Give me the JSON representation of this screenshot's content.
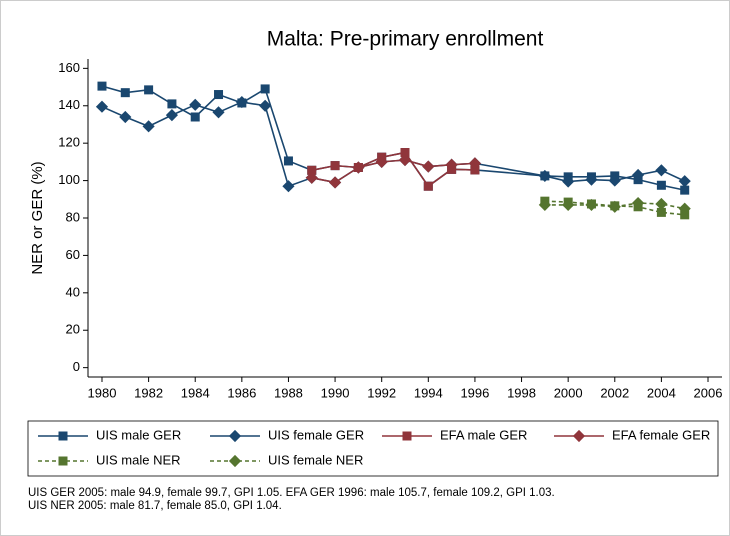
{
  "chart_data": {
    "type": "line",
    "title": "Malta: Pre-primary enrollment",
    "y_label": "NER or GER (%)",
    "xlim": [
      1979.4,
      2006.6
    ],
    "xticks": [
      1980,
      1982,
      1984,
      1986,
      1988,
      1990,
      1992,
      1994,
      1996,
      1998,
      2000,
      2002,
      2004,
      2006
    ],
    "ylim": [
      -5,
      165
    ],
    "yticks": [
      0,
      20,
      40,
      60,
      80,
      100,
      120,
      140,
      160
    ],
    "series": [
      {
        "name": "UIS male GER",
        "color": "#1a476f",
        "marker": "square",
        "dash": false,
        "x": [
          1980,
          1981,
          1982,
          1983,
          1984,
          1985,
          1986,
          1987,
          1988,
          1989,
          1990,
          1991,
          1992,
          1993,
          1994,
          1995,
          1996,
          1999,
          2000,
          2001,
          2002,
          2003,
          2004,
          2005
        ],
        "values": [
          150.5,
          147,
          148.5,
          141,
          134,
          146,
          141.5,
          149,
          110.5,
          105.5,
          108,
          107,
          112.5,
          115,
          97,
          106,
          105.7,
          102.5,
          102,
          102,
          102.5,
          100.5,
          97.5,
          94.9
        ]
      },
      {
        "name": "UIS female GER",
        "color": "#1a476f",
        "marker": "diamond",
        "dash": false,
        "x": [
          1980,
          1981,
          1982,
          1983,
          1984,
          1985,
          1986,
          1987,
          1988,
          1989,
          1990,
          1991,
          1992,
          1993,
          1994,
          1995,
          1996,
          1999,
          2000,
          2001,
          2002,
          2003,
          2004,
          2005
        ],
        "values": [
          139.5,
          134,
          129,
          135,
          140.5,
          136.5,
          142,
          140,
          97,
          101.5,
          99,
          107,
          110,
          111,
          107.5,
          108.5,
          109.2,
          102.5,
          99.5,
          100.5,
          100,
          103,
          105.5,
          99.7
        ]
      },
      {
        "name": "EFA male GER",
        "color": "#90353b",
        "marker": "square",
        "dash": false,
        "x": [
          1989,
          1990,
          1991,
          1992,
          1993,
          1994,
          1995,
          1996
        ],
        "values": [
          105.5,
          108,
          107,
          112.5,
          115,
          97,
          106,
          105.7
        ]
      },
      {
        "name": "EFA female GER",
        "color": "#90353b",
        "marker": "diamond",
        "dash": false,
        "x": [
          1989,
          1990,
          1991,
          1992,
          1993,
          1994,
          1995,
          1996
        ],
        "values": [
          101.5,
          99,
          107,
          110,
          111,
          107.5,
          108.5,
          109.2
        ]
      },
      {
        "name": "UIS male NER",
        "color": "#55752f",
        "marker": "square",
        "dash": true,
        "x": [
          1999,
          2000,
          2001,
          2002,
          2003,
          2004,
          2005
        ],
        "values": [
          89,
          88.5,
          87.5,
          86.5,
          86,
          83,
          81.7
        ]
      },
      {
        "name": "UIS female NER",
        "color": "#55752f",
        "marker": "diamond",
        "dash": true,
        "x": [
          1999,
          2000,
          2001,
          2002,
          2003,
          2004,
          2005
        ],
        "values": [
          87,
          87,
          87,
          86,
          88,
          87.5,
          85.0
        ]
      }
    ],
    "notes": [
      "UIS GER 2005: male 94.9, female 99.7, GPI 1.05. EFA GER 1996: male 105.7, female 109.2, GPI 1.03.",
      "UIS NER 2005: male 81.7, female 85.0, GPI 1.04."
    ]
  }
}
